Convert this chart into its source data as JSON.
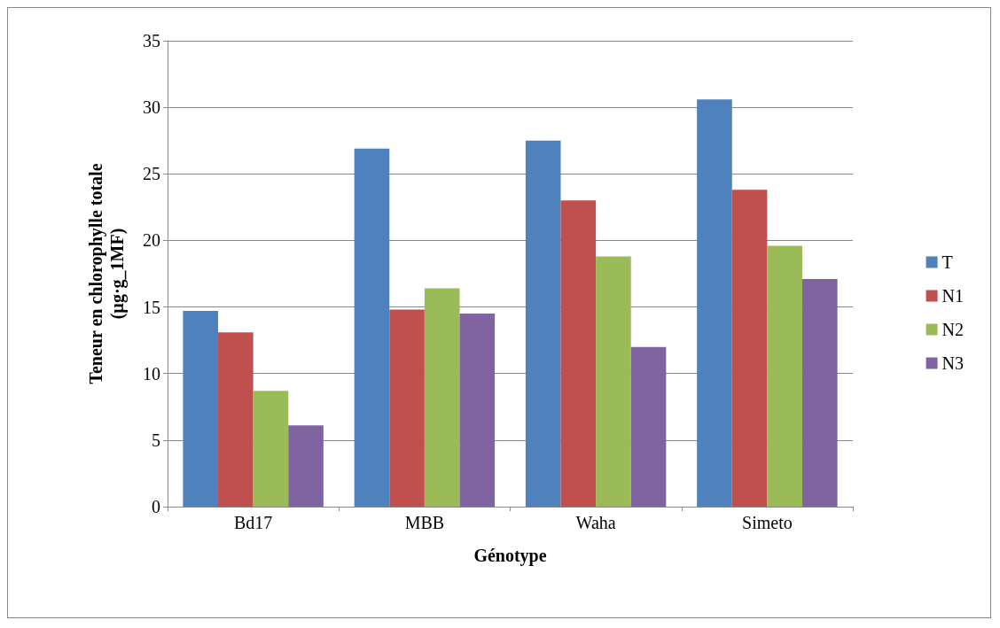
{
  "chart_data": {
    "type": "bar",
    "xlabel": "Génotype",
    "ylabel": "Teneur en chlorophylle totale\n(µg·g_1MF)",
    "categories": [
      "Bd17",
      "MBB",
      "Waha",
      "Simeto"
    ],
    "series": [
      {
        "name": "T",
        "color": "#4f81bd",
        "values": [
          14.7,
          26.9,
          27.5,
          30.6
        ]
      },
      {
        "name": "N1",
        "color": "#c0504d",
        "values": [
          13.1,
          14.8,
          23.0,
          23.8
        ]
      },
      {
        "name": "N2",
        "color": "#9bbb59",
        "values": [
          8.7,
          16.4,
          18.8,
          19.6
        ]
      },
      {
        "name": "N3",
        "color": "#8064a2",
        "values": [
          6.1,
          14.5,
          12.0,
          17.1
        ]
      }
    ],
    "ylim": [
      0,
      35
    ],
    "yticks": [
      0,
      5,
      10,
      15,
      20,
      25,
      30,
      35
    ],
    "grid": "y",
    "legend": "right"
  }
}
